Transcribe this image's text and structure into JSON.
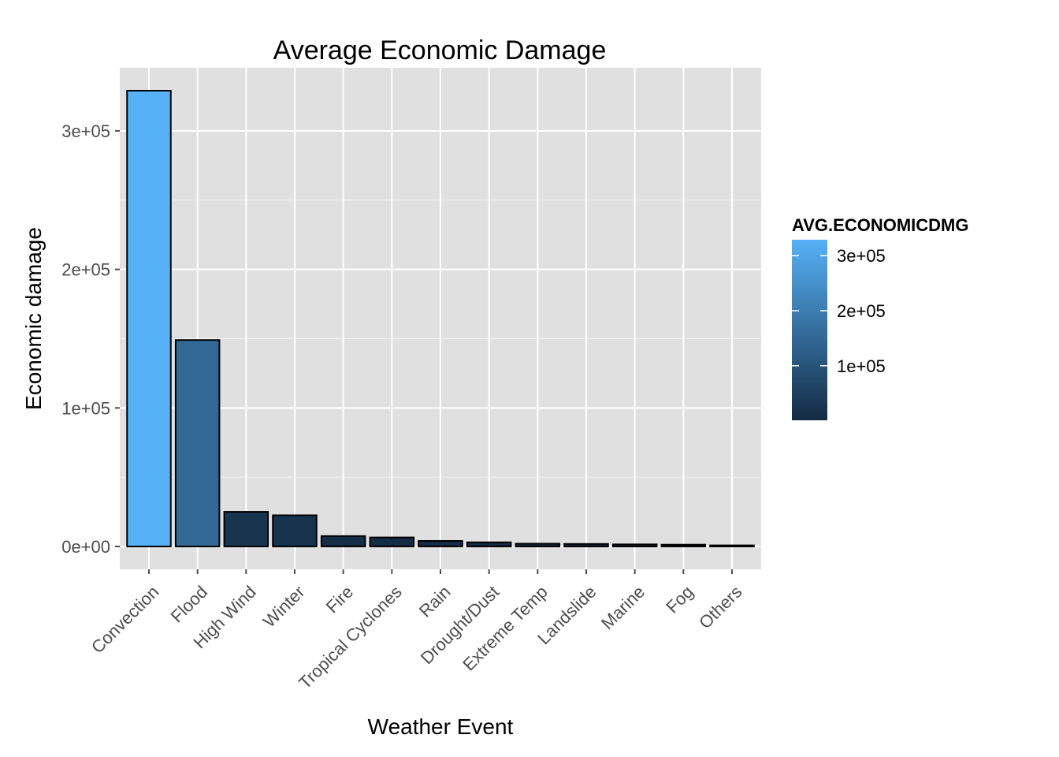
{
  "chart_data": {
    "type": "bar",
    "title": "Average Economic Damage",
    "xlabel": "Weather Event",
    "ylabel": "Economic damage",
    "categories": [
      "Convection",
      "Flood",
      "High Wind",
      "Winter",
      "Fire",
      "Tropical Cyclones",
      "Rain",
      "Drought/Dust",
      "Extreme Temp",
      "Landslide",
      "Marine",
      "Fog",
      "Others"
    ],
    "values": [
      329000,
      149000,
      25000,
      22500,
      7500,
      6500,
      4000,
      3000,
      2000,
      1800,
      1500,
      1300,
      800
    ],
    "ylim": [
      -16500,
      345500
    ],
    "yticks": [
      0,
      100000,
      200000,
      300000
    ],
    "ytick_labels": [
      "0e+00",
      "1e+05",
      "2e+05",
      "3e+05"
    ],
    "grid": true,
    "panel_background": "#e0e0e0",
    "grid_color": "#ffffff",
    "bar_outline": "#000000",
    "fill_scale": {
      "low_color": "#132b43",
      "high_color": "#56b1f7",
      "range": [
        800,
        329000
      ]
    },
    "legend": {
      "title": "AVG.ECONOMICDMG",
      "position": "right",
      "ticks": [
        100000,
        200000,
        300000
      ],
      "tick_labels": [
        "1e+05",
        "2e+05",
        "3e+05"
      ]
    }
  }
}
